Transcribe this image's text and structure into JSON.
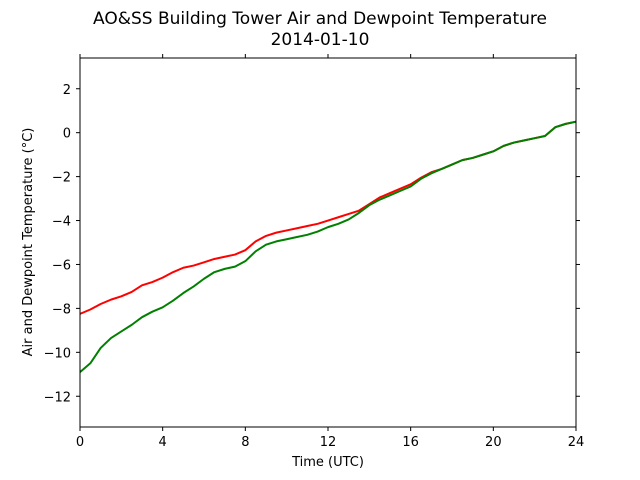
{
  "chart_data": {
    "type": "line",
    "title": "AO&SS Building Tower Air and Dewpoint Temperature",
    "subtitle": "2014-01-10",
    "xlabel": "Time (UTC)",
    "ylabel": "Air and Dewpoint Temperature (°C)",
    "xlim": [
      0,
      24
    ],
    "ylim": [
      -13.4,
      3.4
    ],
    "xticks": [
      0,
      4,
      8,
      12,
      16,
      20,
      24
    ],
    "yticks": [
      -12,
      -10,
      -8,
      -6,
      -4,
      -2,
      0,
      2
    ],
    "grid": false,
    "legend": "none",
    "series": [
      {
        "color": "#ff0000",
        "x": [
          0,
          0.5,
          1,
          1.5,
          2,
          2.5,
          3,
          3.5,
          4,
          4.5,
          5,
          5.5,
          6,
          6.5,
          7,
          7.5,
          8,
          8.5,
          9,
          9.5,
          10,
          10.5,
          11,
          11.5,
          12,
          12.5,
          13,
          13.5,
          14,
          14.5,
          15,
          15.5,
          16,
          16.5,
          17,
          17.5,
          18,
          18.5,
          19,
          19.5,
          20,
          20.5,
          21,
          21.5,
          22,
          22.5,
          23,
          23.5,
          24
        ],
        "values": [
          -8.25,
          -8.05,
          -7.8,
          -7.6,
          -7.45,
          -7.25,
          -6.95,
          -6.8,
          -6.6,
          -6.35,
          -6.15,
          -6.05,
          -5.9,
          -5.75,
          -5.65,
          -5.55,
          -5.35,
          -4.95,
          -4.7,
          -4.55,
          -4.45,
          -4.35,
          -4.25,
          -4.15,
          -4.0,
          -3.85,
          -3.7,
          -3.55,
          -3.25,
          -2.95,
          -2.75,
          -2.55,
          -2.35,
          -2.05,
          -1.8,
          -1.65,
          -1.45,
          -1.25,
          -1.15,
          -1.0,
          -0.85,
          -0.6,
          -0.45,
          -0.35,
          -0.25,
          -0.15,
          0.25,
          0.4,
          0.5
        ]
      },
      {
        "color": "#008000",
        "x": [
          0,
          0.5,
          1,
          1.5,
          2,
          2.5,
          3,
          3.5,
          4,
          4.5,
          5,
          5.5,
          6,
          6.5,
          7,
          7.5,
          8,
          8.5,
          9,
          9.5,
          10,
          10.5,
          11,
          11.5,
          12,
          12.5,
          13,
          13.5,
          14,
          14.5,
          15,
          15.5,
          16,
          16.5,
          17,
          17.5,
          18,
          18.5,
          19,
          19.5,
          20,
          20.5,
          21,
          21.5,
          22,
          22.5,
          23,
          23.5,
          24
        ],
        "values": [
          -10.9,
          -10.5,
          -9.8,
          -9.35,
          -9.05,
          -8.75,
          -8.4,
          -8.15,
          -7.95,
          -7.65,
          -7.3,
          -7.0,
          -6.65,
          -6.35,
          -6.2,
          -6.1,
          -5.85,
          -5.4,
          -5.1,
          -4.95,
          -4.85,
          -4.75,
          -4.65,
          -4.5,
          -4.3,
          -4.15,
          -3.95,
          -3.65,
          -3.3,
          -3.05,
          -2.85,
          -2.65,
          -2.45,
          -2.1,
          -1.85,
          -1.65,
          -1.45,
          -1.25,
          -1.15,
          -1.0,
          -0.85,
          -0.6,
          -0.45,
          -0.35,
          -0.25,
          -0.15,
          0.25,
          0.4,
          0.5
        ]
      }
    ]
  }
}
